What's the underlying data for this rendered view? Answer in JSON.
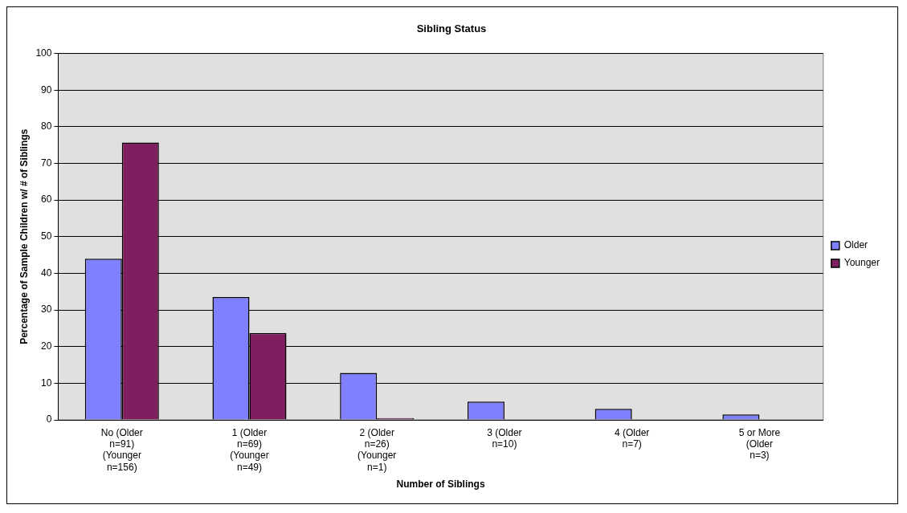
{
  "chart_data": {
    "type": "bar",
    "title": "Sibling Status",
    "xlabel": "Number of Siblings",
    "ylabel": "Percentage of Sample Children w/ # of Siblings",
    "categories": [
      "No (Older n=91) (Younger n=156)",
      "1 (Older n=69) (Younger n=49)",
      "2 (Older n=26) (Younger n=1)",
      "3 (Older n=10)",
      "4 (Older n=7)",
      "5 or More (Older n=3)"
    ],
    "series": [
      {
        "name": "Older",
        "color": "#8080ff",
        "values": [
          44,
          33.5,
          12.8,
          5,
          3,
          1.5
        ]
      },
      {
        "name": "Younger",
        "color": "#7f1f5f",
        "values": [
          75.7,
          23.7,
          0.5,
          null,
          null,
          null
        ]
      }
    ],
    "ylim": [
      0,
      100
    ],
    "yticks": [
      0,
      10,
      20,
      30,
      40,
      50,
      60,
      70,
      80,
      90,
      100
    ],
    "grid": "y",
    "legend": "right"
  }
}
